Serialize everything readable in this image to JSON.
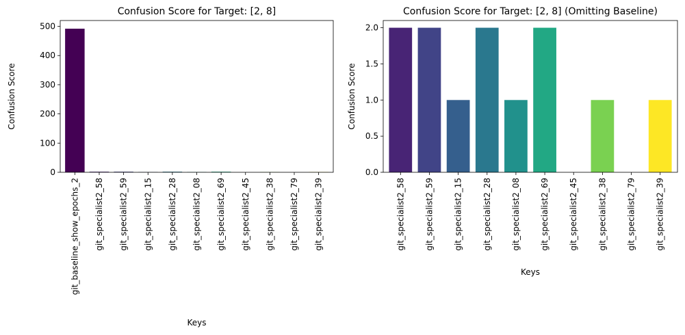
{
  "chart_data": [
    {
      "type": "bar",
      "title": "Confusion Score for Target: [2, 8]",
      "xlabel": "Keys",
      "ylabel": "Confusion Score",
      "ylim": [
        0,
        520
      ],
      "yticks": [
        0,
        100,
        200,
        300,
        400,
        500
      ],
      "ytick_labels": [
        "0",
        "100",
        "200",
        "300",
        "400",
        "500"
      ],
      "grid": false,
      "categories": [
        "git_baseline_show_epochs_2",
        "git_specialist2_58",
        "git_specialist2_59",
        "git_specialist2_15",
        "git_specialist2_28",
        "git_specialist2_08",
        "git_specialist2_69",
        "git_specialist2_45",
        "git_specialist2_38",
        "git_specialist2_79",
        "git_specialist2_39"
      ],
      "values": [
        492,
        2,
        2,
        1,
        2,
        1,
        2,
        0,
        1,
        0,
        1
      ],
      "colors": [
        "#440154",
        "#482475",
        "#414487",
        "#355f8d",
        "#2a788e",
        "#21918c",
        "#22a884",
        "#44bf70",
        "#7ad151",
        "#bddf26",
        "#fde725"
      ]
    },
    {
      "type": "bar",
      "title": "Confusion Score for Target: [2, 8] (Omitting Baseline)",
      "xlabel": "Keys",
      "ylabel": "Confusion Score",
      "ylim": [
        0,
        2.1
      ],
      "yticks": [
        0,
        0.5,
        1.0,
        1.5,
        2.0
      ],
      "ytick_labels": [
        "0.0",
        "0.5",
        "1.0",
        "1.5",
        "2.0"
      ],
      "grid": false,
      "categories": [
        "git_specialist2_58",
        "git_specialist2_59",
        "git_specialist2_15",
        "git_specialist2_28",
        "git_specialist2_08",
        "git_specialist2_69",
        "git_specialist2_45",
        "git_specialist2_38",
        "git_specialist2_79",
        "git_specialist2_39"
      ],
      "values": [
        2,
        2,
        1,
        2,
        1,
        2,
        0,
        1,
        0,
        1
      ],
      "colors": [
        "#482475",
        "#414487",
        "#355f8d",
        "#2a788e",
        "#21918c",
        "#22a884",
        "#44bf70",
        "#7ad151",
        "#bddf26",
        "#fde725"
      ]
    }
  ]
}
